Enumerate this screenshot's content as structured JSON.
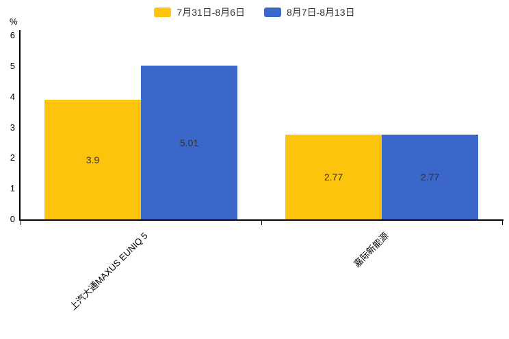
{
  "chart_data": {
    "type": "bar",
    "title": "",
    "ylabel": "%",
    "xlabel": "",
    "ylim": [
      0,
      6
    ],
    "yticks": [
      0,
      1,
      2,
      3,
      4,
      5,
      6
    ],
    "grid": false,
    "legend_position": "top",
    "categories": [
      "上汽大通MAXUS EUNIQ 5",
      "嘉际新能源"
    ],
    "series": [
      {
        "name": "7月31日-8月6日",
        "color": "#fcc40d",
        "values": [
          3.9,
          2.77
        ]
      },
      {
        "name": "8月7日-8月13日",
        "color": "#3a67c9",
        "values": [
          5.01,
          2.77
        ]
      }
    ],
    "value_labels": {
      "0": [
        "3.9",
        "5.01"
      ],
      "1": [
        "2.77",
        "2.77"
      ]
    }
  }
}
